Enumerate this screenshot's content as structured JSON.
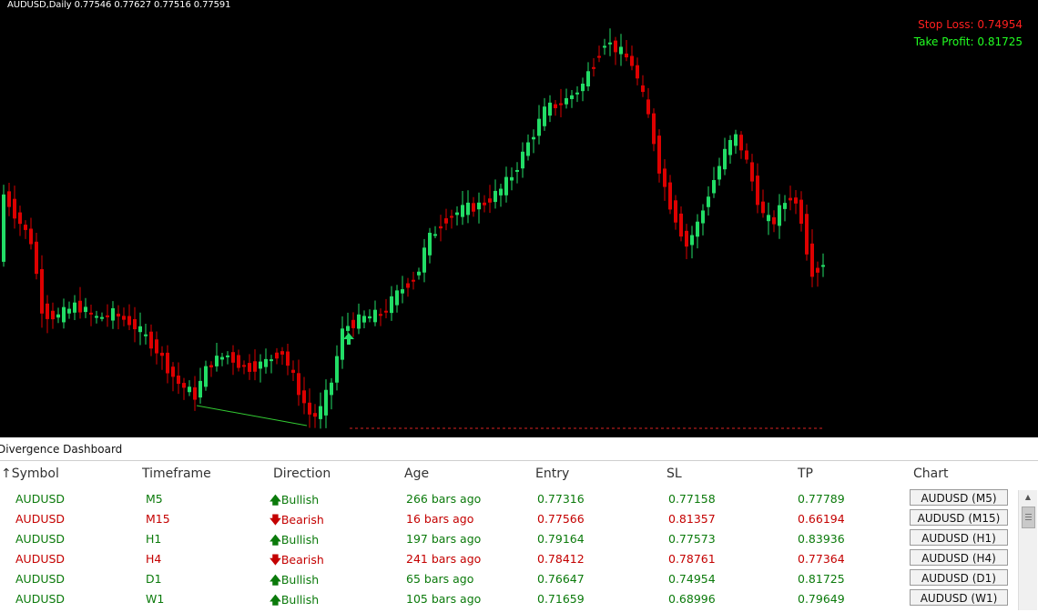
{
  "chart": {
    "header": "AUDUSD,Daily  0.77546 0.77627 0.77516 0.77591",
    "stop_loss": "Stop Loss: 0.74954",
    "take_profit": "Take Profit: 0.81725",
    "colors": {
      "bull": "#22dd66",
      "bear": "#dd0000",
      "divergence_line": "#33cc33",
      "sl_line": "#dd2222"
    }
  },
  "dashboard": {
    "title": "Divergence Dashboard",
    "headers": {
      "symbol": "Symbol",
      "timeframe": "Timeframe",
      "direction": "Direction",
      "age": "Age",
      "entry": "Entry",
      "sl": "SL",
      "tp": "TP",
      "chart": "Chart"
    },
    "sort_indicator": "↑",
    "rows": [
      {
        "symbol": "AUDUSD",
        "timeframe": "M5",
        "arrow": "🡅",
        "direction": "Bullish",
        "type": "bull",
        "age": "266 bars ago",
        "entry": "0.77316",
        "sl": "0.77158",
        "tp": "0.77789",
        "button": "AUDUSD (M5)"
      },
      {
        "symbol": "AUDUSD",
        "timeframe": "M15",
        "arrow": "🡇",
        "direction": "Bearish",
        "type": "bear",
        "age": "16 bars ago",
        "entry": "0.77566",
        "sl": "0.81357",
        "tp": "0.66194",
        "button": "AUDUSD (M15)"
      },
      {
        "symbol": "AUDUSD",
        "timeframe": "H1",
        "arrow": "🡅",
        "direction": "Bullish",
        "type": "bull",
        "age": "197 bars ago",
        "entry": "0.79164",
        "sl": "0.77573",
        "tp": "0.83936",
        "button": "AUDUSD (H1)"
      },
      {
        "symbol": "AUDUSD",
        "timeframe": "H4",
        "arrow": "🡇",
        "direction": "Bearish",
        "type": "bear",
        "age": "241 bars ago",
        "entry": "0.78412",
        "sl": "0.78761",
        "tp": "0.77364",
        "button": "AUDUSD (H4)"
      },
      {
        "symbol": "AUDUSD",
        "timeframe": "D1",
        "arrow": "🡅",
        "direction": "Bullish",
        "type": "bull",
        "age": "65 bars ago",
        "entry": "0.76647",
        "sl": "0.74954",
        "tp": "0.81725",
        "button": "AUDUSD (D1)"
      },
      {
        "symbol": "AUDUSD",
        "timeframe": "W1",
        "arrow": "🡅",
        "direction": "Bullish",
        "type": "bull",
        "age": "105 bars ago",
        "entry": "0.71659",
        "sl": "0.68996",
        "tp": "0.79649",
        "button": "AUDUSD (W1)"
      }
    ]
  }
}
